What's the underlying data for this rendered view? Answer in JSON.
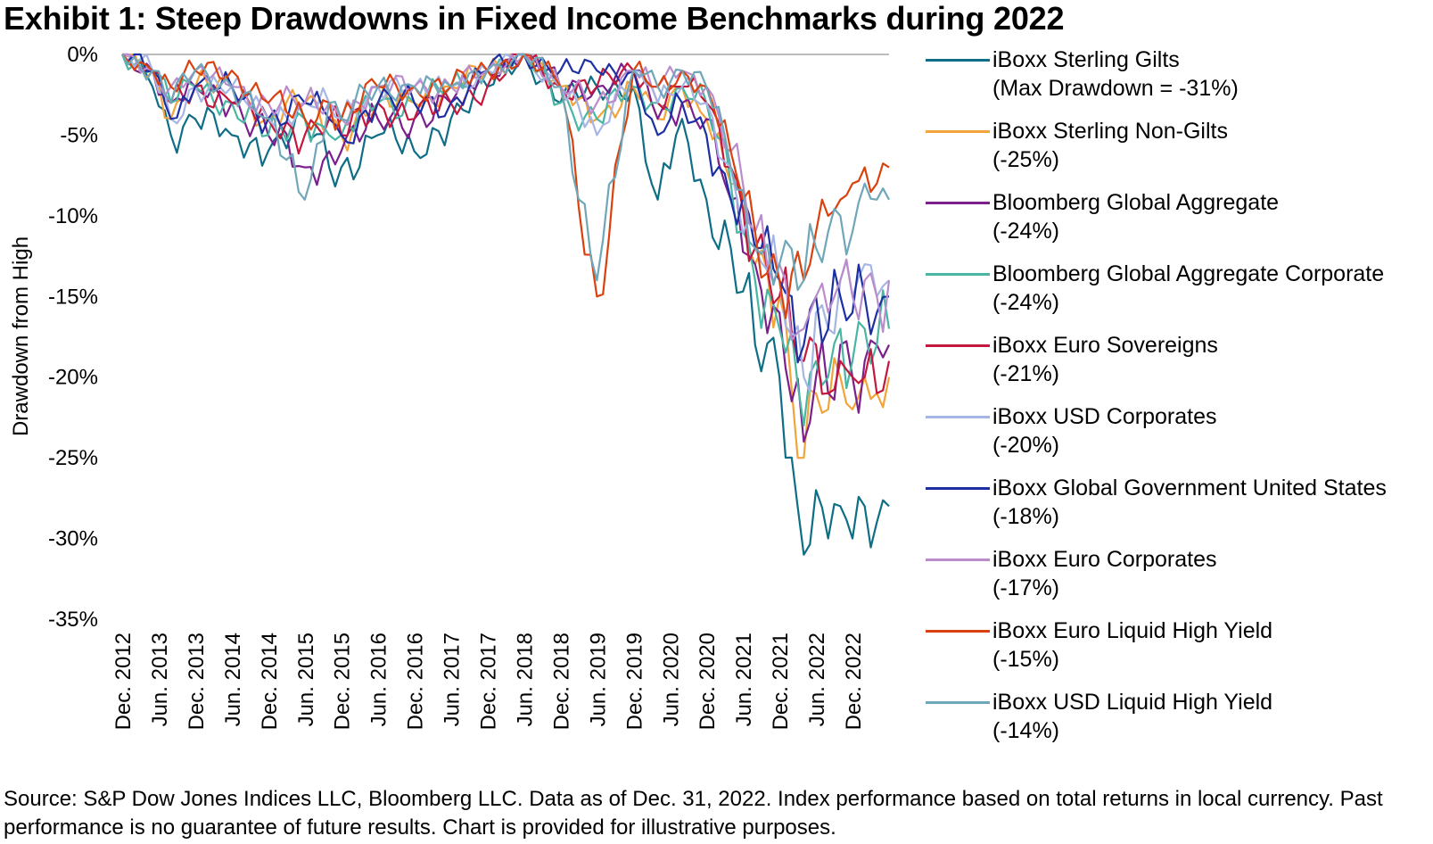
{
  "title": "Exhibit 1: Steep Drawdowns in Fixed Income Benchmarks during 2022",
  "source": "Source: S&P Dow Jones Indices LLC, Bloomberg LLC. Data as of Dec. 31, 2022. Index performance based on total returns in local currency. Past performance is no guarantee of future results. Chart is provided for illustrative purposes.",
  "chart_data": {
    "type": "line",
    "title": "Exhibit 1: Steep Drawdowns in Fixed Income Benchmarks during 2022",
    "ylabel": "Drawdown from High",
    "xlabel": "",
    "ylim": [
      -35,
      0
    ],
    "yticks": [
      0,
      -5,
      -10,
      -15,
      -20,
      -25,
      -30,
      -35
    ],
    "ytick_labels": [
      "0%",
      "-5%",
      "-10%",
      "-15%",
      "-20%",
      "-25%",
      "-30%",
      "-35%"
    ],
    "xtick_labels": [
      "Dec. 2012",
      "Jun. 2013",
      "Dec. 2013",
      "Jun. 2014",
      "Dec. 2014",
      "Jun. 2015",
      "Dec. 2015",
      "Jun. 2016",
      "Dec. 2016",
      "Jun. 2017",
      "Dec. 2017",
      "Jun. 2018",
      "Dec. 2018",
      "Jun. 2019",
      "Dec. 2019",
      "Jun. 2020",
      "Dec. 2020",
      "Jun. 2021",
      "Dec. 2021",
      "Jun. 2022",
      "Dec. 2022"
    ],
    "x_anchor_months": [
      0,
      5,
      8,
      12,
      18,
      24,
      30,
      34,
      36,
      42,
      48,
      54,
      60,
      66,
      72,
      78,
      84,
      87,
      88,
      92,
      96,
      100,
      104,
      108,
      112,
      114,
      116,
      118,
      120,
      122,
      124,
      126
    ],
    "legend_position": "right",
    "series": [
      {
        "name": "iBoxx Sterling Gilts",
        "sub": "(Max Drawdown = -31%)",
        "color": "#0d6e86",
        "values": [
          0,
          -2,
          -5,
          -4,
          -5,
          -6,
          -4,
          -7,
          -7,
          -5,
          -6,
          -4,
          -2,
          0,
          -3,
          -2,
          -2,
          -8,
          -9,
          -4,
          -9,
          -12,
          -18,
          -20,
          -31,
          -27,
          -30,
          -28,
          -30,
          -28,
          -29,
          -28
        ]
      },
      {
        "name": "iBoxx Sterling Non-Gilts",
        "sub": "(-25%)",
        "color": "#f2a33a",
        "values": [
          0,
          -1,
          -4,
          -2,
          -2,
          -4,
          -3,
          -4,
          -5,
          -3,
          -3,
          -2,
          -1,
          0,
          -2,
          -4,
          -2,
          -3,
          -4,
          -2,
          -4,
          -8,
          -13,
          -15,
          -25,
          -21,
          -22,
          -20,
          -22,
          -20,
          -21,
          -20
        ]
      },
      {
        "name": "Bloomberg Global Aggregate",
        "sub": "(-24%)",
        "color": "#7a1f8c",
        "values": [
          0,
          -1,
          -3,
          -2,
          -3,
          -5,
          -7,
          -6,
          -6,
          -4,
          -4,
          -3,
          -1,
          0,
          -2,
          -2,
          -1,
          -3,
          -4,
          -3,
          -4,
          -9,
          -13,
          -16,
          -24,
          -20,
          -21,
          -18,
          -20,
          -19,
          -18,
          -18
        ]
      },
      {
        "name": "Bloomberg Global Aggregate Corporate",
        "sub": "(-24%)",
        "color": "#48b6a2",
        "values": [
          0,
          -1,
          -3,
          -2,
          -3,
          -5,
          -4,
          -5,
          -5,
          -3,
          -3,
          -2,
          -1,
          0,
          -3,
          -4,
          -2,
          -3,
          -3,
          -2,
          -3,
          -8,
          -14,
          -17,
          -23,
          -19,
          -20,
          -17,
          -19,
          -17,
          -18,
          -17
        ]
      },
      {
        "name": "iBoxx Euro Sovereigns",
        "sub": "(-21%)",
        "color": "#c4173e",
        "values": [
          0,
          -1,
          -3,
          -2,
          -3,
          -4,
          -5,
          -4,
          -5,
          -3,
          -4,
          -3,
          -2,
          0,
          -2,
          -2,
          -1,
          -2,
          -3,
          -2,
          -3,
          -7,
          -12,
          -15,
          -19,
          -18,
          -21,
          -19,
          -20,
          -20,
          -21,
          -19
        ]
      },
      {
        "name": "iBoxx USD Corporates",
        "sub": "(-20%)",
        "color": "#a6b6e4",
        "values": [
          0,
          -1,
          -4,
          -2,
          -2,
          -4,
          -3,
          -3,
          -4,
          -2,
          -2,
          -2,
          -1,
          0,
          -2,
          -5,
          -1,
          -2,
          -3,
          -2,
          -3,
          -7,
          -12,
          -14,
          -20,
          -16,
          -17,
          -14,
          -15,
          -13,
          -15,
          -14
        ]
      },
      {
        "name": "iBoxx Global Government United States",
        "sub": "(-18%)",
        "color": "#1c2fa3",
        "values": [
          0,
          -1,
          -4,
          -2,
          -2,
          -4,
          -3,
          -4,
          -5,
          -3,
          -3,
          -3,
          -1,
          0,
          -1,
          -1,
          -1,
          -4,
          -5,
          -3,
          -5,
          -9,
          -12,
          -14,
          -18,
          -15,
          -17,
          -15,
          -16,
          -15,
          -16,
          -15
        ]
      },
      {
        "name": "iBoxx Euro Corporates",
        "sub": "(-17%)",
        "color": "#bb8ccc",
        "values": [
          0,
          -1,
          -2,
          -1,
          -2,
          -3,
          -3,
          -3,
          -4,
          -2,
          -2,
          -2,
          -1,
          0,
          -2,
          -3,
          -1,
          -2,
          -2,
          -1,
          -2,
          -6,
          -11,
          -13,
          -17,
          -15,
          -16,
          -14,
          -15,
          -14,
          -15,
          -14
        ]
      },
      {
        "name": "iBoxx Euro Liquid High Yield",
        "sub": "(-15%)",
        "color": "#d9420e",
        "values": [
          0,
          -1,
          -2,
          -1,
          -1,
          -3,
          -4,
          -3,
          -4,
          -2,
          -2,
          -2,
          -1,
          0,
          -2,
          -15,
          -1,
          -2,
          -2,
          -1,
          -2,
          -6,
          -11,
          -14,
          -14,
          -11,
          -10,
          -9,
          -8,
          -7,
          -8,
          -7
        ]
      },
      {
        "name": "iBoxx USD Liquid High Yield",
        "sub": "(-14%)",
        "color": "#6fa6b8",
        "values": [
          0,
          -1,
          -3,
          -1,
          -2,
          -4,
          -9,
          -3,
          -4,
          -2,
          -2,
          -2,
          -1,
          0,
          -2,
          -14,
          -1,
          -1,
          -2,
          -1,
          -2,
          -7,
          -12,
          -13,
          -14,
          -12,
          -11,
          -10,
          -11,
          -8,
          -9,
          -9
        ]
      }
    ]
  }
}
